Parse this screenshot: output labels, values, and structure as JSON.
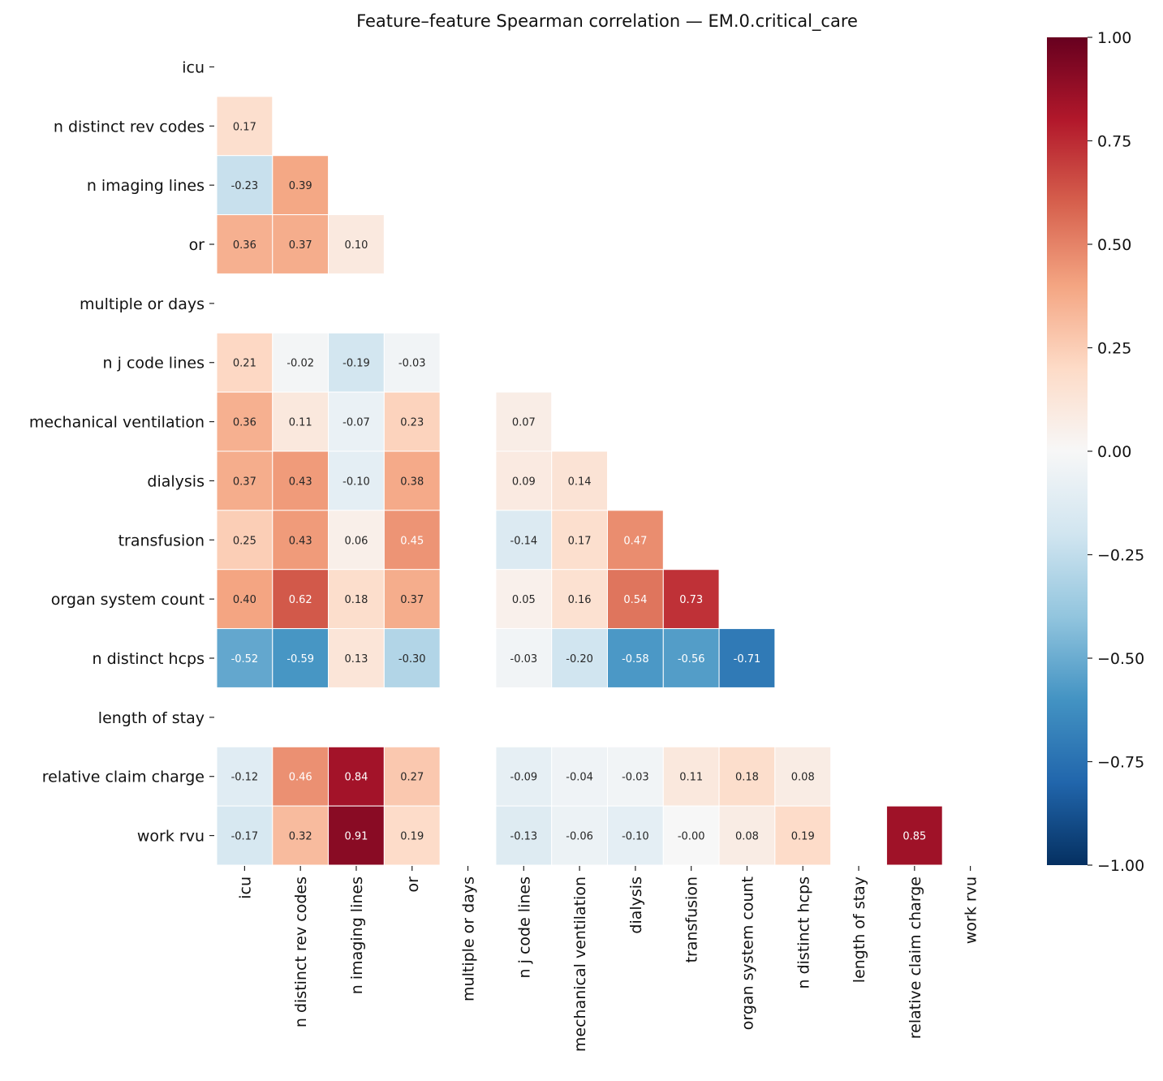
{
  "chart_data": {
    "type": "heatmap",
    "title": "Feature–feature Spearman correlation — EM.0.critical_care",
    "xlabel": "",
    "ylabel": "",
    "colormap": "RdBu_r",
    "vmin": -1,
    "vmax": 1,
    "mask": "upper triangle (incl. diagonal); constant features blank",
    "labels": [
      "icu",
      "n distinct rev codes",
      "n imaging lines",
      "or",
      "multiple or days",
      "n j code lines",
      "mechanical ventilation",
      "dialysis",
      "transfusion",
      "organ system count",
      "n distinct hcps",
      "length of stay",
      "relative claim charge",
      "work rvu"
    ],
    "values": [
      [],
      [
        0.17
      ],
      [
        -0.23,
        0.39
      ],
      [
        0.36,
        0.37,
        0.1
      ],
      [
        null,
        null,
        null,
        null
      ],
      [
        0.21,
        -0.02,
        -0.19,
        -0.03,
        null
      ],
      [
        0.36,
        0.11,
        -0.07,
        0.23,
        null,
        0.07
      ],
      [
        0.37,
        0.43,
        -0.1,
        0.38,
        null,
        0.09,
        0.14
      ],
      [
        0.25,
        0.43,
        0.06,
        0.45,
        null,
        -0.14,
        0.17,
        0.47
      ],
      [
        0.4,
        0.62,
        0.18,
        0.37,
        null,
        0.05,
        0.16,
        0.54,
        0.73
      ],
      [
        -0.52,
        -0.59,
        0.13,
        -0.3,
        null,
        -0.03,
        -0.2,
        -0.58,
        -0.56,
        -0.71
      ],
      [
        null,
        null,
        null,
        null,
        null,
        null,
        null,
        null,
        null,
        null,
        null
      ],
      [
        -0.12,
        0.46,
        0.84,
        0.27,
        null,
        -0.09,
        -0.04,
        -0.03,
        0.11,
        0.18,
        0.08,
        null
      ],
      [
        -0.17,
        0.32,
        0.91,
        0.19,
        null,
        -0.13,
        -0.06,
        -0.1,
        -0.0,
        0.08,
        0.19,
        null,
        0.85
      ]
    ],
    "colorbar_ticks": [
      "1.00",
      "0.75",
      "0.50",
      "0.25",
      "0.00",
      "−0.25",
      "−0.50",
      "−0.75",
      "−1.00"
    ],
    "colorbar_tick_values": [
      1,
      0.75,
      0.5,
      0.25,
      0,
      -0.25,
      -0.5,
      -0.75,
      -1
    ]
  }
}
